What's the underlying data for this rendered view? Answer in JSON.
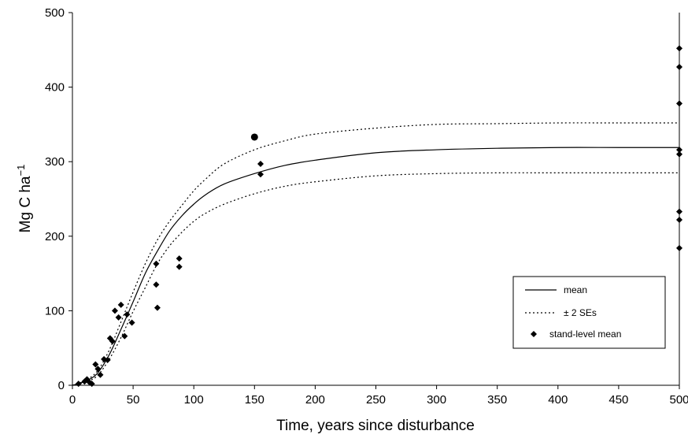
{
  "chart_data": {
    "type": "scatter",
    "xlabel": "Time, years since disturbance",
    "ylabel": {
      "base": "Mg C ha",
      "sup": "−1"
    },
    "xlim": [
      0,
      500
    ],
    "ylim": [
      0,
      500
    ],
    "xticks": [
      0,
      50,
      100,
      150,
      200,
      250,
      300,
      350,
      400,
      450,
      500
    ],
    "yticks": [
      0,
      100,
      200,
      300,
      400,
      500
    ],
    "grid": false,
    "legend_position": "lower-right",
    "legend": [
      {
        "label": "mean",
        "style": "solid"
      },
      {
        "label": "± 2 SEs",
        "style": "dotted"
      },
      {
        "label": "stand-level mean",
        "style": "diamond"
      }
    ],
    "curves": [
      {
        "name": "mean",
        "style": "solid",
        "color": "#000000",
        "points": [
          [
            0,
            0
          ],
          [
            10,
            5
          ],
          [
            20,
            15
          ],
          [
            30,
            40
          ],
          [
            40,
            75
          ],
          [
            50,
            112
          ],
          [
            60,
            150
          ],
          [
            70,
            180
          ],
          [
            80,
            207
          ],
          [
            90,
            227
          ],
          [
            100,
            243
          ],
          [
            110,
            256
          ],
          [
            125,
            270
          ],
          [
            150,
            284
          ],
          [
            175,
            295
          ],
          [
            200,
            302
          ],
          [
            250,
            312
          ],
          [
            300,
            316
          ],
          [
            350,
            318
          ],
          [
            400,
            319
          ],
          [
            450,
            319
          ],
          [
            500,
            319
          ]
        ]
      },
      {
        "name": "± 2 SEs",
        "style": "dotted",
        "color": "#000000",
        "points": [
          [
            0,
            0
          ],
          [
            10,
            6
          ],
          [
            20,
            18
          ],
          [
            30,
            46
          ],
          [
            40,
            85
          ],
          [
            50,
            125
          ],
          [
            60,
            163
          ],
          [
            70,
            195
          ],
          [
            80,
            220
          ],
          [
            90,
            241
          ],
          [
            100,
            261
          ],
          [
            110,
            277
          ],
          [
            125,
            297
          ],
          [
            150,
            316
          ],
          [
            175,
            328
          ],
          [
            200,
            337
          ],
          [
            250,
            345
          ],
          [
            300,
            350
          ],
          [
            350,
            351
          ],
          [
            400,
            352
          ],
          [
            450,
            352
          ],
          [
            500,
            352
          ]
        ]
      },
      {
        "name": "± 2 SEs",
        "style": "dotted",
        "color": "#000000",
        "points": [
          [
            0,
            0
          ],
          [
            10,
            4
          ],
          [
            20,
            12
          ],
          [
            30,
            34
          ],
          [
            40,
            64
          ],
          [
            50,
            99
          ],
          [
            60,
            131
          ],
          [
            70,
            163
          ],
          [
            80,
            187
          ],
          [
            90,
            205
          ],
          [
            100,
            220
          ],
          [
            110,
            231
          ],
          [
            125,
            243
          ],
          [
            150,
            257
          ],
          [
            175,
            267
          ],
          [
            200,
            273
          ],
          [
            250,
            281
          ],
          [
            300,
            284
          ],
          [
            350,
            285
          ],
          [
            400,
            285
          ],
          [
            450,
            285
          ],
          [
            500,
            285
          ]
        ]
      }
    ],
    "points": [
      {
        "x": 5,
        "y": 2
      },
      {
        "x": 10,
        "y": 5
      },
      {
        "x": 12,
        "y": 8
      },
      {
        "x": 14,
        "y": 4
      },
      {
        "x": 16,
        "y": 2
      },
      {
        "x": 19,
        "y": 28
      },
      {
        "x": 21,
        "y": 22
      },
      {
        "x": 23,
        "y": 14
      },
      {
        "x": 26,
        "y": 35
      },
      {
        "x": 29,
        "y": 34
      },
      {
        "x": 31,
        "y": 63
      },
      {
        "x": 33,
        "y": 59
      },
      {
        "x": 35,
        "y": 100
      },
      {
        "x": 38,
        "y": 91
      },
      {
        "x": 40,
        "y": 108
      },
      {
        "x": 43,
        "y": 66
      },
      {
        "x": 45,
        "y": 95
      },
      {
        "x": 49,
        "y": 84
      },
      {
        "x": 69,
        "y": 163
      },
      {
        "x": 69,
        "y": 135
      },
      {
        "x": 70,
        "y": 104
      },
      {
        "x": 88,
        "y": 170
      },
      {
        "x": 88,
        "y": 159
      },
      {
        "x": 155,
        "y": 297
      },
      {
        "x": 155,
        "y": 283
      },
      {
        "x": 500,
        "y": 452
      },
      {
        "x": 500,
        "y": 427
      },
      {
        "x": 500,
        "y": 378
      },
      {
        "x": 500,
        "y": 316
      },
      {
        "x": 500,
        "y": 310
      },
      {
        "x": 500,
        "y": 233
      },
      {
        "x": 500,
        "y": 222
      },
      {
        "x": 500,
        "y": 184
      }
    ],
    "outlier": {
      "x": 150,
      "y": 333,
      "marker": "circle"
    }
  }
}
